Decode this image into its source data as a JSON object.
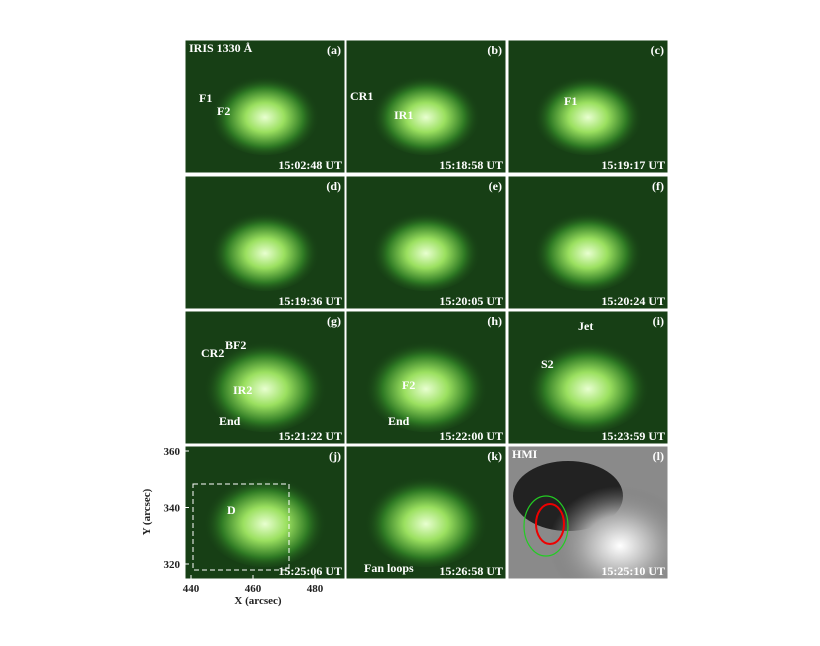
{
  "panels": [
    {
      "label": "(a)",
      "time": "15:02:48 UT",
      "notes": [
        {
          "text": "IRIS 1330 Å"
        },
        {
          "text": "F1"
        },
        {
          "text": "F2"
        }
      ]
    },
    {
      "label": "(b)",
      "time": "15:18:58 UT",
      "notes": [
        {
          "text": "CR1"
        },
        {
          "text": "IR1"
        }
      ]
    },
    {
      "label": "(c)",
      "time": "15:19:17 UT",
      "notes": [
        {
          "text": "F1"
        }
      ]
    },
    {
      "label": "(d)",
      "time": "15:19:36 UT",
      "notes": []
    },
    {
      "label": "(e)",
      "time": "15:20:05 UT",
      "notes": []
    },
    {
      "label": "(f)",
      "time": "15:20:24 UT",
      "notes": []
    },
    {
      "label": "(g)",
      "time": "15:21:22 UT",
      "notes": [
        {
          "text": "BF2"
        },
        {
          "text": "CR2"
        },
        {
          "text": "IR2"
        },
        {
          "text": "End"
        }
      ]
    },
    {
      "label": "(h)",
      "time": "15:22:00 UT",
      "notes": [
        {
          "text": "F2"
        },
        {
          "text": "End"
        }
      ]
    },
    {
      "label": "(i)",
      "time": "15:23:59 UT",
      "notes": [
        {
          "text": "Jet"
        },
        {
          "text": "S2"
        }
      ]
    },
    {
      "label": "(j)",
      "time": "15:25:06 UT",
      "notes": [
        {
          "text": "D"
        }
      ]
    },
    {
      "label": "(k)",
      "time": "15:26:58 UT",
      "notes": [
        {
          "text": "Fan loops"
        }
      ]
    },
    {
      "label": "(l)",
      "time": "15:25:10 UT",
      "notes": [
        {
          "text": "HMI"
        }
      ]
    }
  ],
  "axes": {
    "y_label": "Y (arcsec)",
    "x_label": "X (arcsec)",
    "yticks": [
      320,
      340,
      360
    ],
    "xticks": [
      440,
      460,
      480
    ]
  }
}
